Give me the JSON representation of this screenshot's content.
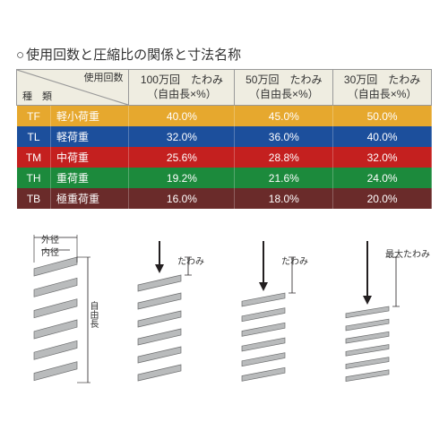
{
  "title": "使用回数と圧縮比の関係と寸法名称",
  "header": {
    "type_label_top": "使用回数",
    "type_label_bottom": "種　類",
    "cols": [
      {
        "top": "100万回　たわみ",
        "bottom": "（自由長×%）"
      },
      {
        "top": "50万回　たわみ",
        "bottom": "（自由長×%）"
      },
      {
        "top": "30万回　たわみ",
        "bottom": "（自由長×%）"
      }
    ]
  },
  "rows": [
    {
      "code": "TF",
      "label": "軽小荷重",
      "vals": [
        "40.0%",
        "45.0%",
        "50.0%"
      ],
      "color": "#e6a82e"
    },
    {
      "code": "TL",
      "label": "軽荷重",
      "vals": [
        "32.0%",
        "36.0%",
        "40.0%"
      ],
      "color": "#1c4f9c"
    },
    {
      "code": "TM",
      "label": "中荷重",
      "vals": [
        "25.6%",
        "28.8%",
        "32.0%"
      ],
      "color": "#c4201f"
    },
    {
      "code": "TH",
      "label": "重荷重",
      "vals": [
        "19.2%",
        "21.6%",
        "24.0%"
      ],
      "color": "#1c8a3c"
    },
    {
      "code": "TB",
      "label": "極重荷重",
      "vals": [
        "16.0%",
        "18.0%",
        "20.0%"
      ],
      "color": "#6a2b2a"
    }
  ],
  "diagram_labels": {
    "outer": "外径",
    "inner": "内径",
    "free_len": "自由長",
    "deflection": "たわみ",
    "max_deflection": "最大たわみ"
  },
  "svg_colors": {
    "coil_fill": "#b9bbbc",
    "coil_stroke": "#6e6f70",
    "arrow": "#231f20",
    "dim_line": "#231f20"
  },
  "spring_heights": [
    140,
    120,
    100,
    85
  ]
}
